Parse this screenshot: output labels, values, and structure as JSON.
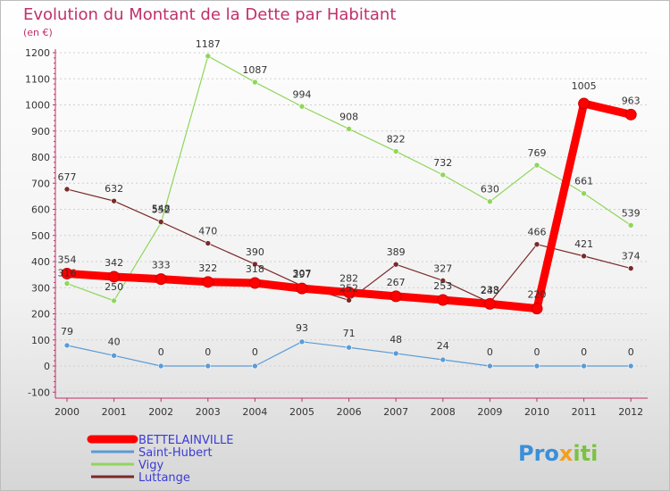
{
  "chart_data": {
    "type": "line",
    "title": "Evolution du Montant de la Dette par Habitant",
    "subtitle": "(en €)",
    "x": [
      "2000",
      "2001",
      "2002",
      "2003",
      "2004",
      "2005",
      "2006",
      "2007",
      "2008",
      "2009",
      "2010",
      "2011",
      "2012"
    ],
    "y_ticks": [
      "-100",
      "0",
      "100",
      "200",
      "300",
      "400",
      "500",
      "600",
      "700",
      "800",
      "900",
      "1000",
      "1100",
      "1200"
    ],
    "ylim": [
      -100,
      1200
    ],
    "grid": "horizontal dotted",
    "series": [
      {
        "name": "BETTELAINVILLE",
        "color": "#ff0000",
        "values": [
          354,
          342,
          333,
          322,
          318,
          297,
          282,
          267,
          253,
          238,
          220,
          1005,
          963
        ]
      },
      {
        "name": "Saint-Hubert",
        "color": "#5b9bd5",
        "values": [
          79,
          40,
          0,
          0,
          0,
          93,
          71,
          48,
          24,
          0,
          0,
          0,
          0
        ]
      },
      {
        "name": "Vigy",
        "color": "#8fd65a",
        "values": [
          316,
          250,
          548,
          1187,
          1087,
          994,
          908,
          822,
          732,
          630,
          769,
          661,
          539
        ]
      },
      {
        "name": "Luttange",
        "color": "#7a2a2a",
        "values": [
          677,
          632,
          552,
          470,
          390,
          307,
          252,
          389,
          327,
          243,
          466,
          421,
          374
        ]
      }
    ]
  },
  "logo": {
    "text": "Proxiti"
  }
}
